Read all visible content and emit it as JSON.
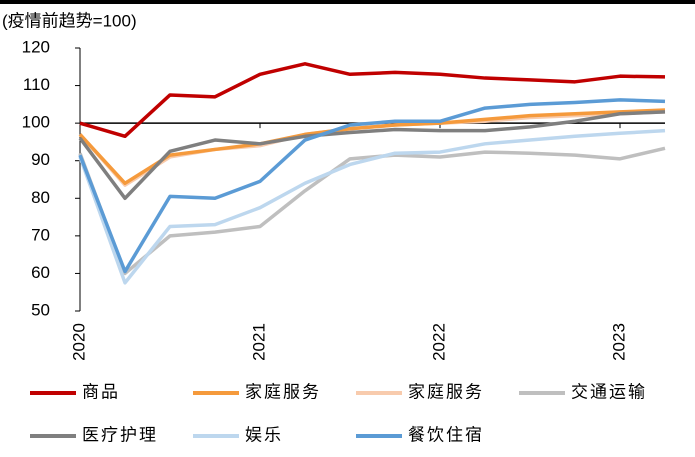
{
  "chart_data": {
    "type": "line",
    "y_axis_label": "(疫情前趋势=100)",
    "x": [
      2020,
      2020.25,
      2020.5,
      2020.75,
      2021,
      2021.25,
      2021.5,
      2021.75,
      2022,
      2022.25,
      2022.5,
      2022.75,
      2023,
      2023.25
    ],
    "xlim": [
      2020,
      2023.25
    ],
    "xticks": [
      2020,
      2021,
      2022,
      2023
    ],
    "ylim": [
      50,
      120
    ],
    "yticks": [
      50,
      60,
      70,
      80,
      90,
      100,
      110,
      120
    ],
    "baseline": 100,
    "series": [
      {
        "name": "商品",
        "color": "#c00000",
        "values": [
          100,
          96.5,
          107.5,
          107,
          113,
          115.8,
          113,
          113.5,
          113,
          112,
          111.5,
          111,
          112.5,
          112.3
        ]
      },
      {
        "name": "家庭服务",
        "color": "#f59a3c",
        "values": [
          97,
          84,
          91.5,
          93,
          94.5,
          97,
          98.5,
          99.5,
          100,
          101,
          102,
          102.5,
          103,
          103.5
        ]
      },
      {
        "name": "家庭服务",
        "color": "#f8cbad",
        "values": [
          97,
          83.5,
          91,
          93,
          94,
          97,
          98.5,
          99.5,
          100,
          100.5,
          101.5,
          102,
          102.5,
          103
        ]
      },
      {
        "name": "交通运输",
        "color": "#bfbfbf",
        "values": [
          92,
          60,
          70,
          71,
          72.5,
          82,
          90.5,
          91.5,
          91,
          92.3,
          92,
          91.5,
          90.5,
          93.3
        ]
      },
      {
        "name": "医疗护理",
        "color": "#7f7f7f",
        "values": [
          96,
          80,
          92.5,
          95.5,
          94.5,
          96.5,
          97.5,
          98.3,
          98,
          98,
          99,
          100.5,
          102.5,
          103
        ]
      },
      {
        "name": "娱乐",
        "color": "#bdd7ee",
        "values": [
          91,
          57.5,
          72.5,
          73,
          77.5,
          84,
          89,
          92,
          92.3,
          94.5,
          95.5,
          96.5,
          97.3,
          98
        ]
      },
      {
        "name": "餐饮住宿",
        "color": "#5b9bd5",
        "values": [
          91.5,
          60.5,
          80.5,
          80,
          84.5,
          95.5,
          99.5,
          100.5,
          100.5,
          104,
          105,
          105.5,
          106.2,
          105.8
        ]
      }
    ]
  }
}
